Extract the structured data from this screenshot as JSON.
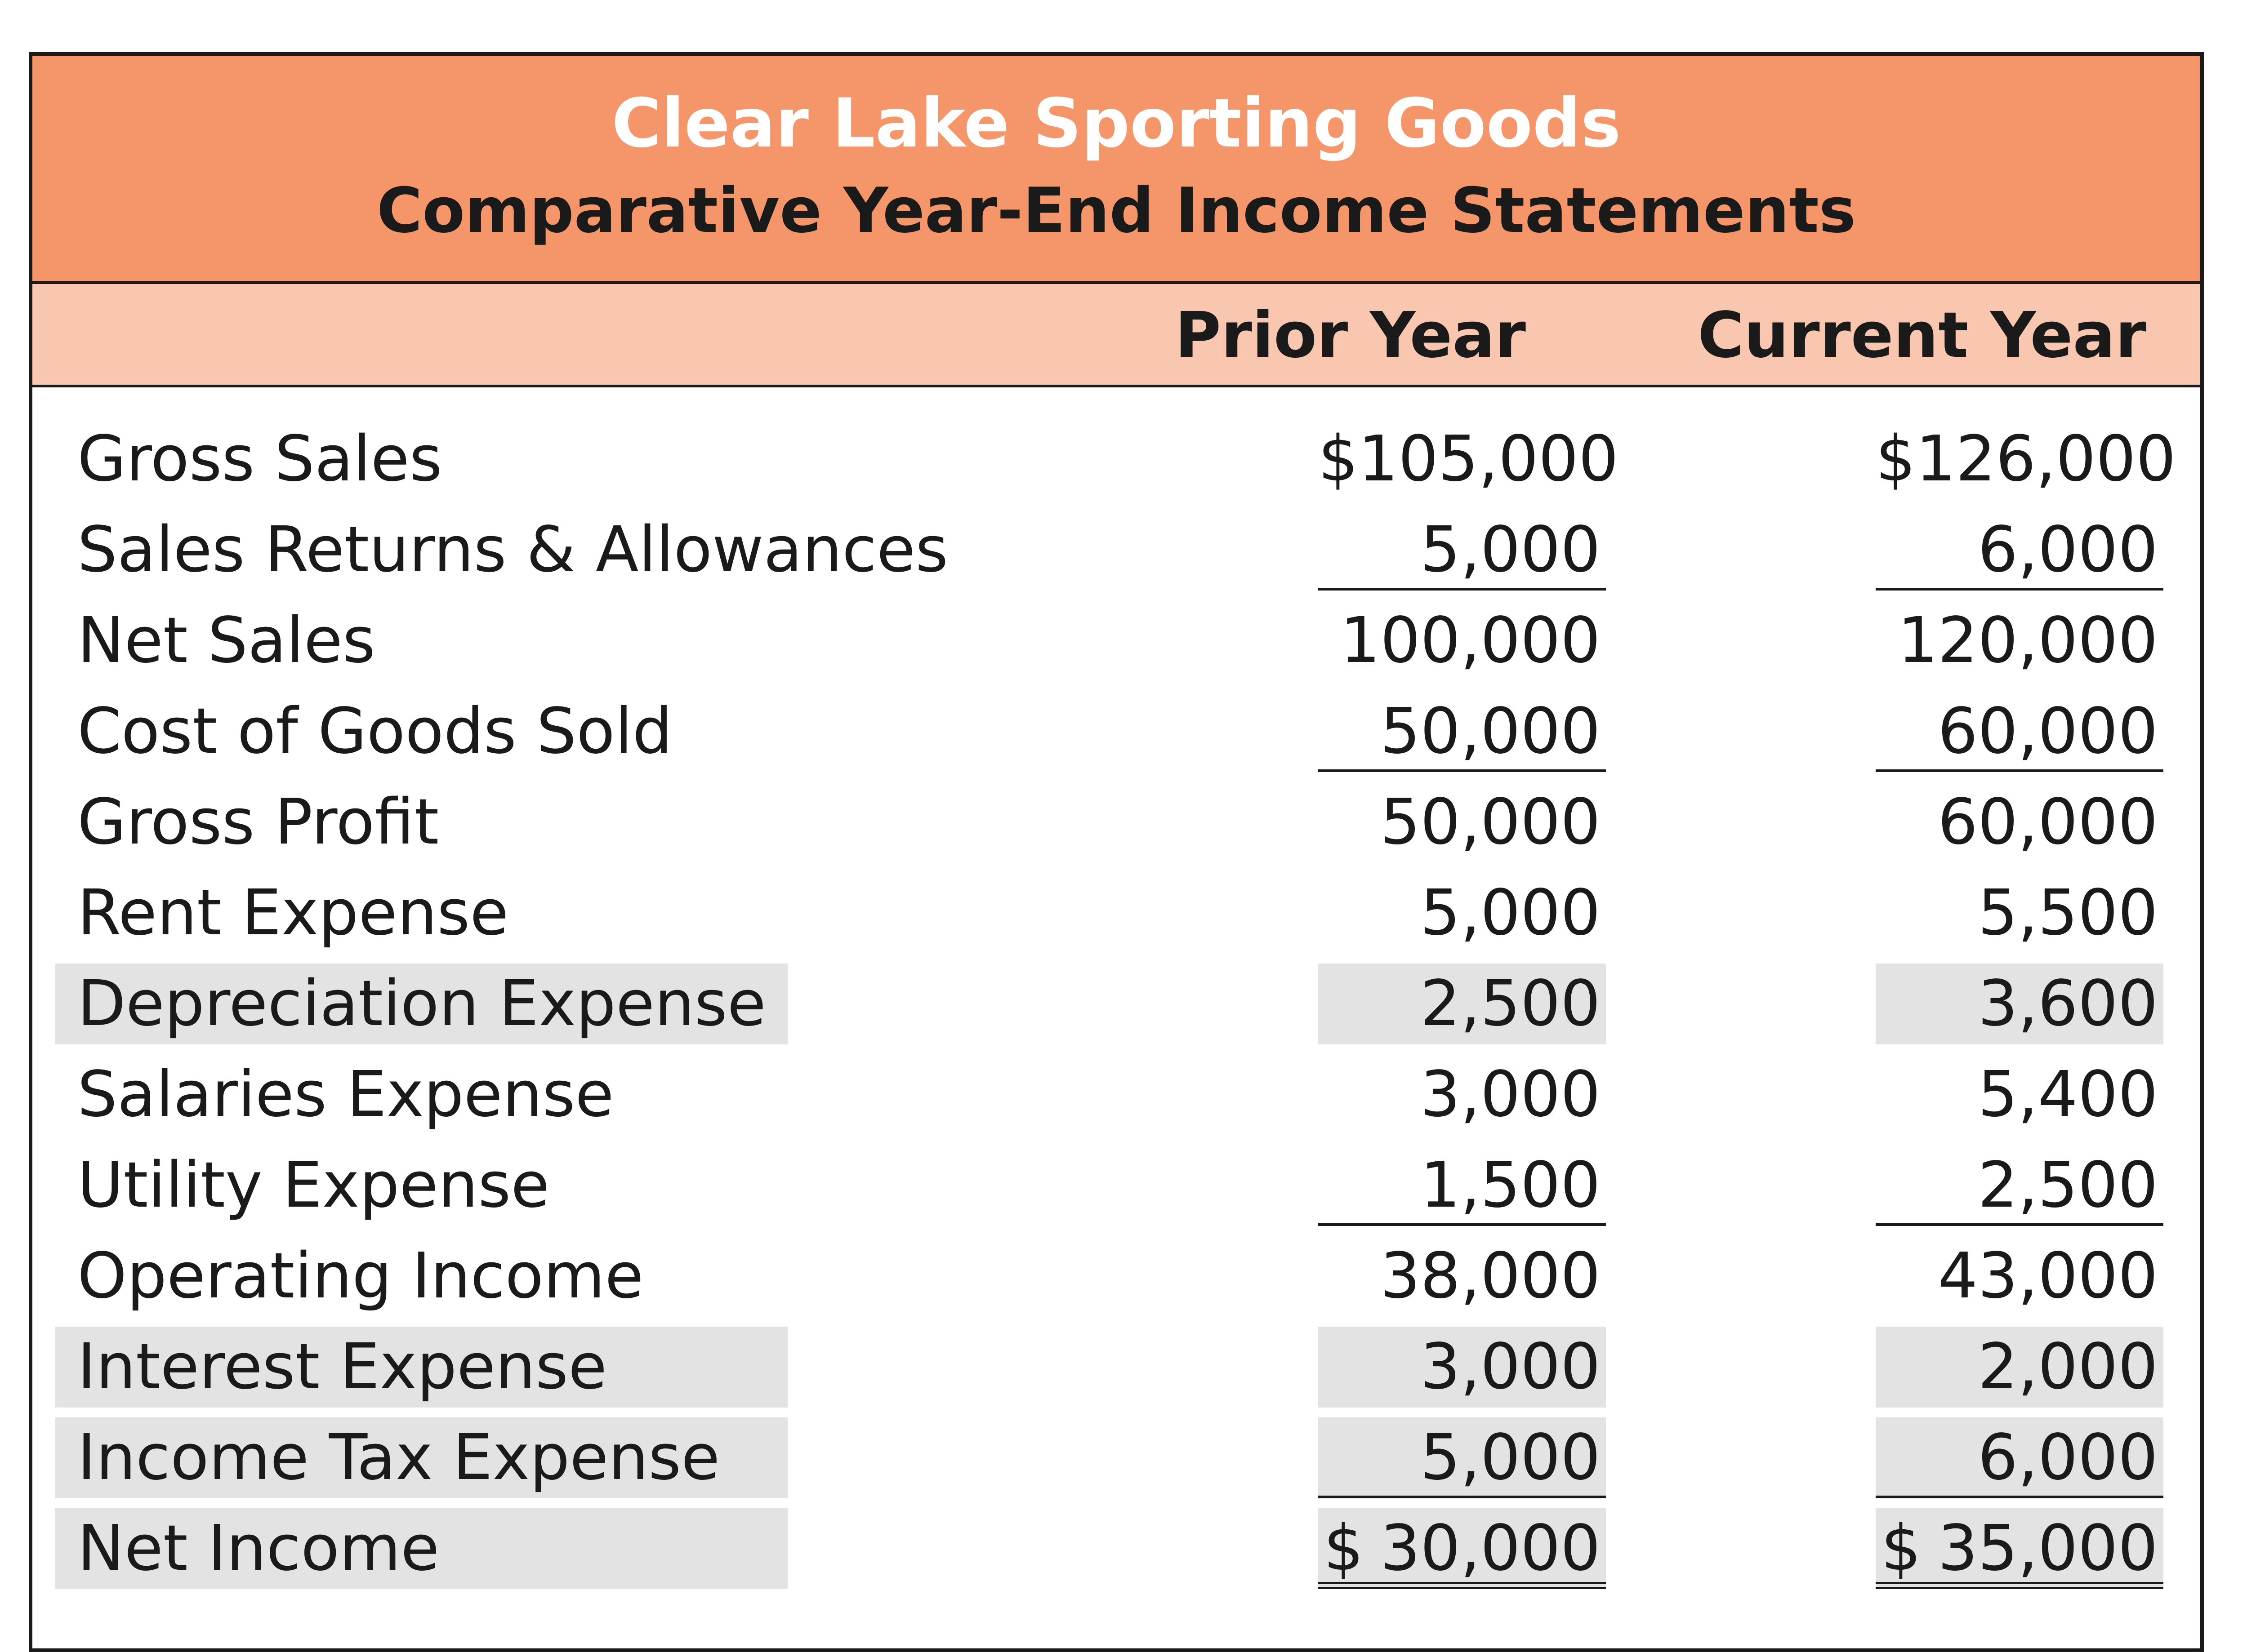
{
  "header": {
    "company": "Clear Lake Sporting Goods",
    "statement_title": "Comparative Year-End Income Statements"
  },
  "columns": {
    "prior": "Prior Year",
    "current": "Current Year"
  },
  "rows": [
    {
      "label": "Gross Sales",
      "prior": "$105,000",
      "current": "$126,000"
    },
    {
      "label": "Sales Returns & Allowances",
      "prior": "5,000",
      "current": "6,000"
    },
    {
      "label": "Net Sales",
      "prior": "100,000",
      "current": "120,000"
    },
    {
      "label": "Cost of Goods Sold",
      "prior": "50,000",
      "current": "60,000"
    },
    {
      "label": "Gross Profit",
      "prior": "50,000",
      "current": "60,000"
    },
    {
      "label": "Rent Expense",
      "prior": "5,000",
      "current": "5,500"
    },
    {
      "label": "Depreciation Expense",
      "prior": "2,500",
      "current": "3,600"
    },
    {
      "label": "Salaries Expense",
      "prior": "3,000",
      "current": "5,400"
    },
    {
      "label": "Utility Expense",
      "prior": "1,500",
      "current": "2,500"
    },
    {
      "label": "Operating Income",
      "prior": "38,000",
      "current": "43,000"
    },
    {
      "label": "Interest Expense",
      "prior": "3,000",
      "current": "2,000"
    },
    {
      "label": "Income Tax Expense",
      "prior": "5,000",
      "current": "6,000"
    },
    {
      "label": "Net Income",
      "prior_symbol": "$",
      "prior": "30,000",
      "current_symbol": "$",
      "current": "35,000"
    }
  ],
  "colors": {
    "title_band": "#f4956a",
    "title_company_text": "#ffffff",
    "title_statement_text": "#1a1a1a",
    "header_band": "#f9c6b0",
    "highlight": "#e3e3e3"
  }
}
